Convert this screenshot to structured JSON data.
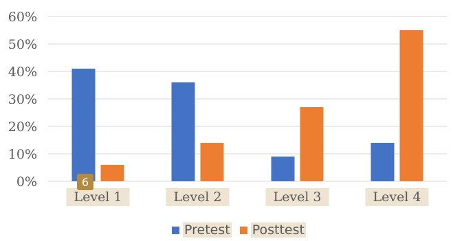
{
  "chart_data": {
    "type": "bar",
    "categories": [
      "Level 1",
      "Level 2",
      "Level 3",
      "Level 4"
    ],
    "series": [
      {
        "name": "Pretest",
        "values": [
          41,
          36,
          9,
          14
        ]
      },
      {
        "name": "Posttest",
        "values": [
          6,
          14,
          27,
          55
        ]
      }
    ],
    "y_ticks": [
      "0%",
      "10%",
      "20%",
      "30%",
      "40%",
      "50%",
      "60%"
    ],
    "ylim": [
      0,
      60
    ],
    "grid": true,
    "legend_position": "bottom",
    "colors": {
      "pretest": "#4472c4",
      "posttest": "#ed7d31",
      "grid": "#d9d9d9",
      "category_highlight": "#efe4d2",
      "badge": "#b38a3e"
    }
  },
  "badge": {
    "text": "6"
  }
}
